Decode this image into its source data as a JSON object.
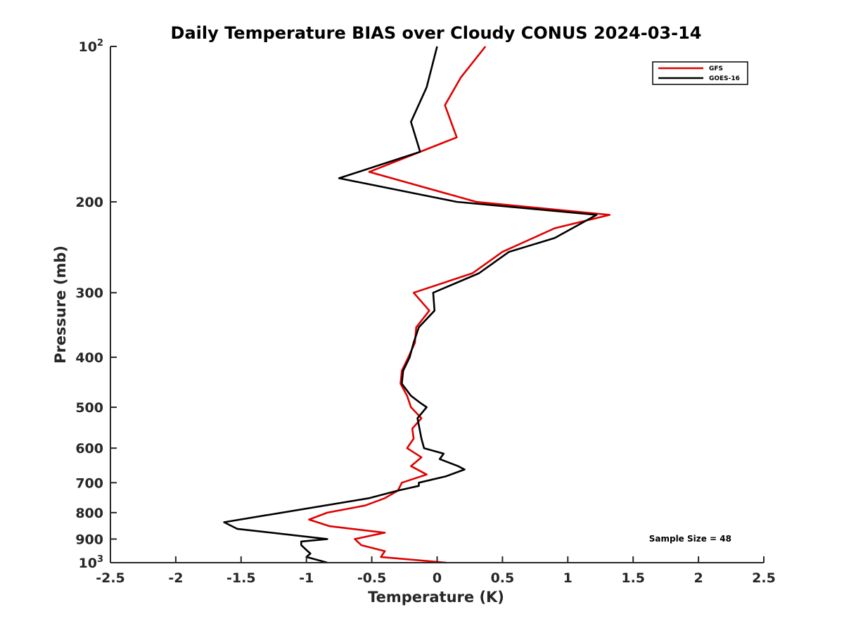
{
  "chart_data": {
    "type": "line",
    "title": "Daily Temperature BIAS over Cloudy CONUS 2024-03-14",
    "xlabel": "Temperature (K)",
    "ylabel": "Pressure (mb)",
    "xlim": [
      -2.5,
      2.5
    ],
    "ylim": [
      1000,
      100
    ],
    "yscale": "log",
    "y_reversed": true,
    "grid": false,
    "legend_position": "top-right",
    "x_ticks": [
      "-2.5",
      "-2",
      "-1.5",
      "-1",
      "-0.5",
      "0",
      "0.5",
      "1",
      "1.5",
      "2",
      "2.5"
    ],
    "x_tick_values": [
      -2.5,
      -2,
      -1.5,
      -1,
      -0.5,
      0,
      0.5,
      1,
      1.5,
      2,
      2.5
    ],
    "y_ticks": [
      {
        "value": 100,
        "base": "10",
        "exp": "2"
      },
      {
        "value": 200,
        "label": "200"
      },
      {
        "value": 300,
        "label": "300"
      },
      {
        "value": 400,
        "label": "400"
      },
      {
        "value": 500,
        "label": "500"
      },
      {
        "value": 600,
        "label": "600"
      },
      {
        "value": 700,
        "label": "700"
      },
      {
        "value": 800,
        "label": "800"
      },
      {
        "value": 900,
        "label": "900"
      },
      {
        "value": 1000,
        "base": "10",
        "exp": "3"
      }
    ],
    "annotation": "Sample Size = 48",
    "series": [
      {
        "name": "GFS",
        "color": "#e00000",
        "points": [
          [
            0.07,
            1000
          ],
          [
            -0.43,
            975
          ],
          [
            -0.4,
            950
          ],
          [
            -0.58,
            925
          ],
          [
            -0.63,
            900
          ],
          [
            -0.4,
            875
          ],
          [
            -0.82,
            850
          ],
          [
            -0.98,
            825
          ],
          [
            -0.84,
            800
          ],
          [
            -0.55,
            775
          ],
          [
            -0.4,
            750
          ],
          [
            -0.3,
            725
          ],
          [
            -0.27,
            700
          ],
          [
            -0.08,
            675
          ],
          [
            -0.2,
            650
          ],
          [
            -0.12,
            625
          ],
          [
            -0.23,
            600
          ],
          [
            -0.18,
            575
          ],
          [
            -0.19,
            550
          ],
          [
            -0.12,
            525
          ],
          [
            -0.2,
            500
          ],
          [
            -0.23,
            475
          ],
          [
            -0.28,
            450
          ],
          [
            -0.27,
            425
          ],
          [
            -0.22,
            400
          ],
          [
            -0.17,
            375
          ],
          [
            -0.16,
            350
          ],
          [
            -0.06,
            325
          ],
          [
            -0.18,
            300
          ],
          [
            0.27,
            275
          ],
          [
            0.5,
            250
          ],
          [
            0.9,
            225
          ],
          [
            1.32,
            212
          ],
          [
            0.3,
            200
          ],
          [
            -0.52,
            175
          ],
          [
            0.15,
            150
          ],
          [
            0.06,
            130
          ],
          [
            0.18,
            115
          ],
          [
            0.37,
            100
          ]
        ]
      },
      {
        "name": "GOES-16",
        "color": "#000000",
        "points": [
          [
            -0.84,
            1000
          ],
          [
            -1.0,
            975
          ],
          [
            -0.97,
            960
          ],
          [
            -1.0,
            945
          ],
          [
            -1.04,
            925
          ],
          [
            -1.04,
            910
          ],
          [
            -0.84,
            900
          ],
          [
            -1.53,
            860
          ],
          [
            -1.63,
            835
          ],
          [
            -0.52,
            750
          ],
          [
            -0.3,
            725
          ],
          [
            -0.14,
            710
          ],
          [
            -0.14,
            700
          ],
          [
            0.07,
            680
          ],
          [
            0.21,
            660
          ],
          [
            0.16,
            650
          ],
          [
            0.02,
            630
          ],
          [
            0.05,
            615
          ],
          [
            -0.1,
            600
          ],
          [
            -0.12,
            575
          ],
          [
            -0.15,
            525
          ],
          [
            -0.08,
            500
          ],
          [
            -0.13,
            490
          ],
          [
            -0.2,
            475
          ],
          [
            -0.27,
            450
          ],
          [
            -0.26,
            425
          ],
          [
            -0.21,
            400
          ],
          [
            -0.18,
            375
          ],
          [
            -0.14,
            350
          ],
          [
            -0.02,
            325
          ],
          [
            -0.03,
            300
          ],
          [
            0.32,
            275
          ],
          [
            0.55,
            250
          ],
          [
            0.9,
            235
          ],
          [
            1.22,
            212
          ],
          [
            0.15,
            200
          ],
          [
            -0.75,
            180
          ],
          [
            -0.13,
            160
          ],
          [
            -0.2,
            140
          ],
          [
            -0.08,
            120
          ],
          [
            0.0,
            100
          ]
        ]
      }
    ]
  }
}
